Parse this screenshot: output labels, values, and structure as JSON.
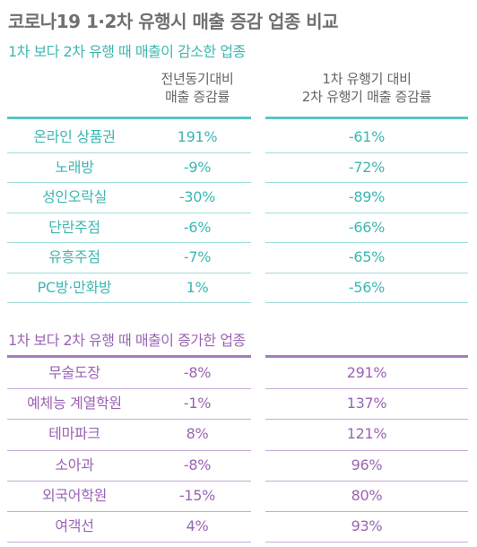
{
  "title": "코로나19 1·2차 유행시 매출 증감 업종 비교",
  "chart_data": {
    "type": "table",
    "columns": [
      "전년동기대비 매출 증감률",
      "1차 유행기 대비 2차 유행기 매출 증감률"
    ],
    "sections": [
      {
        "title": "1차 보다 2차 유행 때 매출이 감소한 업종",
        "rows": [
          {
            "category": "온라인 상품권",
            "yoy": "191%",
            "wave": "-61%"
          },
          {
            "category": "노래방",
            "yoy": "-9%",
            "wave": "-72%"
          },
          {
            "category": "성인오락실",
            "yoy": "-30%",
            "wave": "-89%"
          },
          {
            "category": "단란주점",
            "yoy": "-6%",
            "wave": "-66%"
          },
          {
            "category": "유흥주점",
            "yoy": "-7%",
            "wave": "-65%"
          },
          {
            "category": "PC방·만화방",
            "yoy": "1%",
            "wave": "-56%"
          }
        ]
      },
      {
        "title": "1차 보다 2차 유행 때 매출이 증가한 업종",
        "rows": [
          {
            "category": "무술도장",
            "yoy": "-8%",
            "wave": "291%"
          },
          {
            "category": "예체능 계열학원",
            "yoy": "-1%",
            "wave": "137%"
          },
          {
            "category": "테마파크",
            "yoy": "8%",
            "wave": "121%"
          },
          {
            "category": "소아과",
            "yoy": "-8%",
            "wave": "96%"
          },
          {
            "category": "외국어학원",
            "yoy": "-15%",
            "wave": "80%"
          },
          {
            "category": "여객선",
            "yoy": "4%",
            "wave": "93%"
          }
        ]
      }
    ]
  },
  "headers": {
    "col1_line1": "전년동기대비",
    "col1_line2": "매출 증감률",
    "col2_line1": "1차 유행기 대비",
    "col2_line2": "2차 유행기 매출 증감률"
  },
  "colors": {
    "section1": "#3cb7b1",
    "section2": "#9a64b4",
    "title": "#707070"
  }
}
